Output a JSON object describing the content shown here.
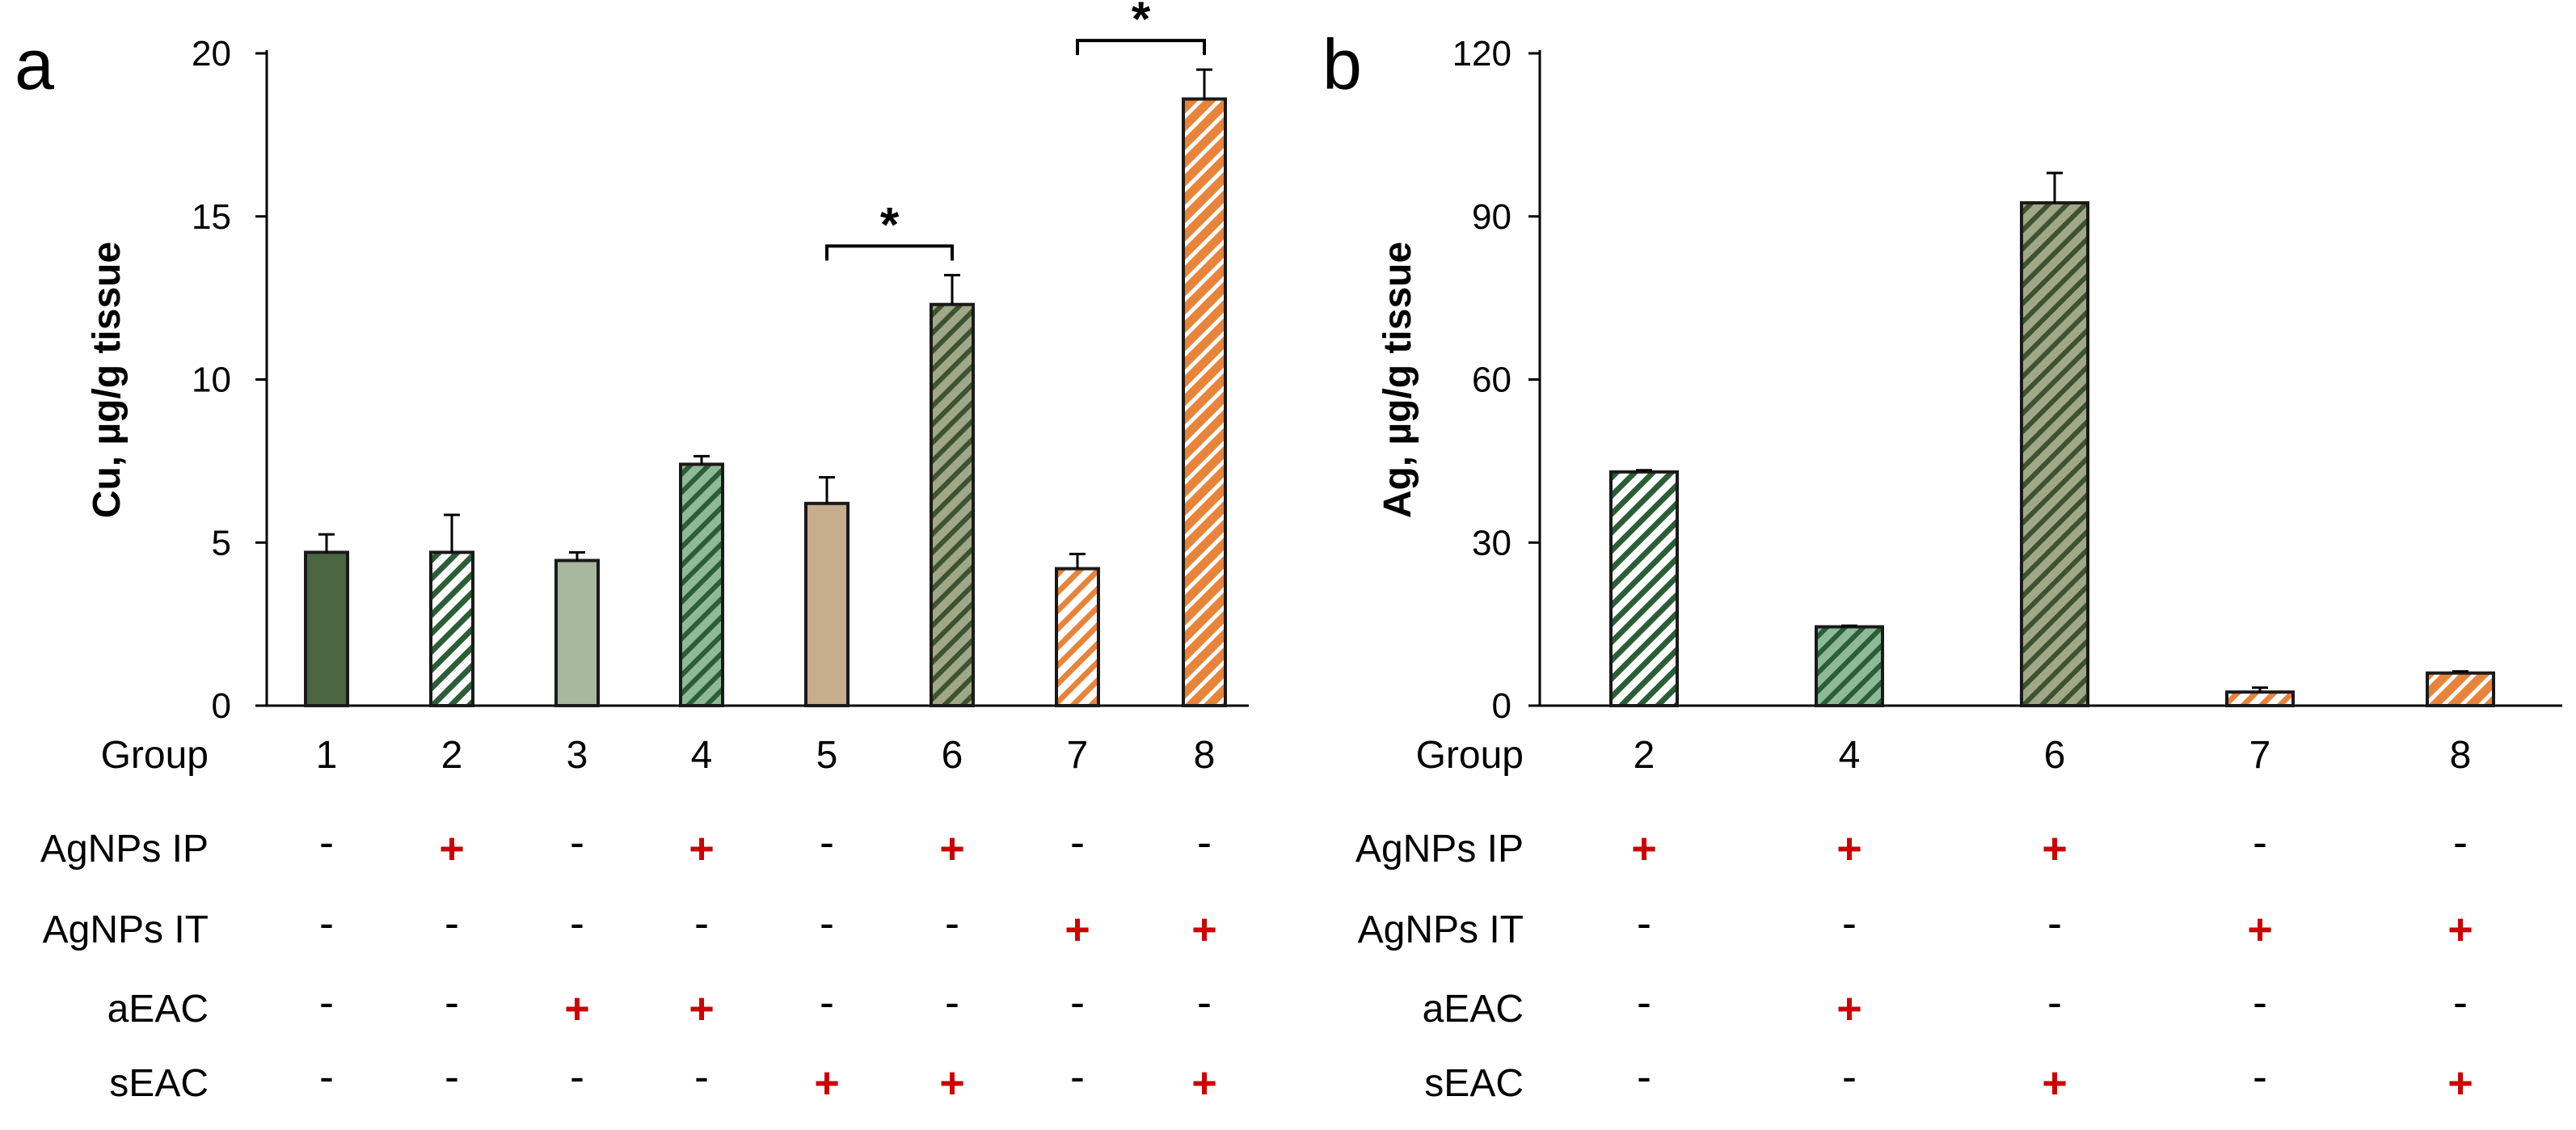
{
  "colors": {
    "dark_green": "#4a6741",
    "light_green": "#8fba98",
    "sage": "#a8b89f",
    "tan": "#c6ad8c",
    "olive": "#a0a888",
    "orange": "#e8843a",
    "hatch_green": "#2b5e36",
    "hatch_olive": "#3c5230",
    "plus_red": "#cc0000"
  },
  "chart_data": [
    {
      "panel": "a",
      "type": "bar",
      "title": "",
      "xlabel": "Group",
      "ylabel": "Cu, µg/g tissue",
      "ylim": [
        0,
        20
      ],
      "yticks": [
        "0",
        "5",
        "10",
        "15",
        "20"
      ],
      "ytick_values": [
        0,
        5,
        10,
        15,
        20
      ],
      "categories": [
        "1",
        "2",
        "3",
        "4",
        "5",
        "6",
        "7",
        "8"
      ],
      "values": [
        4.7,
        4.7,
        4.45,
        7.4,
        6.2,
        12.3,
        4.2,
        18.6
      ],
      "errors": [
        0.55,
        1.15,
        0.25,
        0.25,
        0.8,
        0.9,
        0.45,
        0.9
      ],
      "styles": [
        "dark_green_solid",
        "white_hatch_green",
        "sage_solid",
        "light_green_hatch",
        "tan_solid",
        "olive_hatch",
        "white_hatch_orange",
        "orange_hatch"
      ],
      "significance": [
        {
          "from": "5",
          "to": "6",
          "label": "*"
        },
        {
          "from": "7",
          "to": "8",
          "label": "*"
        }
      ],
      "rows": [
        {
          "label": "AgNPs IP",
          "values": [
            "-",
            "+",
            "-",
            "+",
            "-",
            "+",
            "-",
            "-"
          ]
        },
        {
          "label": "AgNPs IT",
          "values": [
            "-",
            "-",
            "-",
            "-",
            "-",
            "-",
            "+",
            "+"
          ]
        },
        {
          "label": "aEAC",
          "values": [
            "-",
            "-",
            "+",
            "+",
            "-",
            "-",
            "-",
            "-"
          ]
        },
        {
          "label": "sEAC",
          "values": [
            "-",
            "-",
            "-",
            "-",
            "+",
            "+",
            "-",
            "+"
          ]
        }
      ]
    },
    {
      "panel": "b",
      "type": "bar",
      "title": "",
      "xlabel": "Group",
      "ylabel": "Ag, µg/g tissue",
      "ylim": [
        0,
        120
      ],
      "yticks": [
        "0",
        "30",
        "60",
        "90",
        "120"
      ],
      "ytick_values": [
        0,
        30,
        60,
        90,
        120
      ],
      "categories": [
        "2",
        "4",
        "6",
        "7",
        "8"
      ],
      "values": [
        43,
        14.5,
        92.5,
        2.5,
        6
      ],
      "errors": [
        0.3,
        0.2,
        5.5,
        0.8,
        0.3
      ],
      "styles": [
        "white_hatch_green",
        "light_green_hatch",
        "olive_hatch",
        "white_hatch_orange",
        "orange_hatch"
      ],
      "significance": [],
      "rows": [
        {
          "label": "AgNPs IP",
          "values": [
            "+",
            "+",
            "+",
            "-",
            "-"
          ]
        },
        {
          "label": "AgNPs IT",
          "values": [
            "-",
            "-",
            "-",
            "+",
            "+"
          ]
        },
        {
          "label": "aEAC",
          "values": [
            "-",
            "+",
            "-",
            "-",
            "-"
          ]
        },
        {
          "label": "sEAC",
          "values": [
            "-",
            "-",
            "+",
            "-",
            "+"
          ]
        }
      ]
    }
  ]
}
